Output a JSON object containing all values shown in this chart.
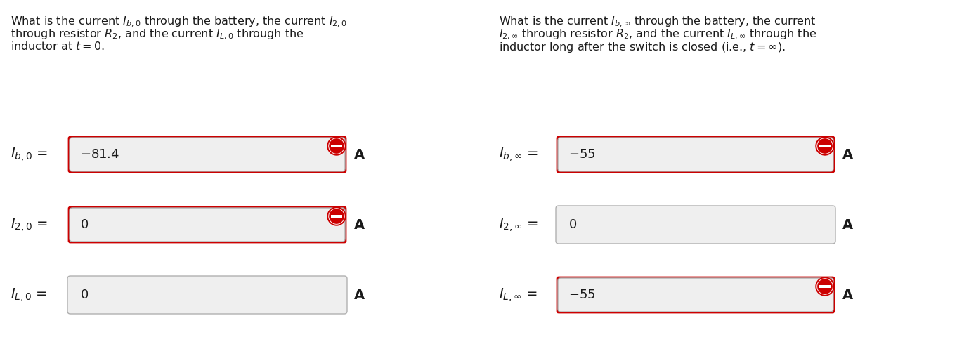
{
  "bg_color": "#ffffff",
  "left_question_lines": [
    "What is the current $I_{b,0}$ through the battery, the current $I_{2,0}$",
    "through resistor $R_2$, and the current $I_{L,0}$ through the",
    "inductor at $t = 0$."
  ],
  "right_question_lines": [
    "What is the current $I_{b,\\infty}$ through the battery, the current",
    "$I_{2,\\infty}$ through resistor $R_2$, and the current $I_{L,\\infty}$ through the",
    "inductor long after the switch is closed (i.e., $t = \\infty$)."
  ],
  "left_rows": [
    {
      "label": "$I_{b,0}$",
      "value": "$-81.4$",
      "red_border": true,
      "red_icon": true
    },
    {
      "label": "$I_{2,0}$",
      "value": "$0$",
      "red_border": true,
      "red_icon": true
    },
    {
      "label": "$I_{L,0}$",
      "value": "$0$",
      "red_border": false,
      "red_icon": false
    }
  ],
  "right_rows": [
    {
      "label": "$I_{b,\\infty}$",
      "value": "$-55$",
      "red_border": true,
      "red_icon": true
    },
    {
      "label": "$I_{2,\\infty}$",
      "value": "$0$",
      "red_border": false,
      "red_icon": false
    },
    {
      "label": "$I_{L,\\infty}$",
      "value": "$-55$",
      "red_border": true,
      "red_icon": true
    }
  ],
  "unit": "A",
  "red_border_color": "#cc0000",
  "red_icon_color": "#cc0000",
  "text_color": "#1a1a1a",
  "font_size_question": 11.5,
  "font_size_label": 14,
  "font_size_value": 13,
  "font_size_unit": 14
}
